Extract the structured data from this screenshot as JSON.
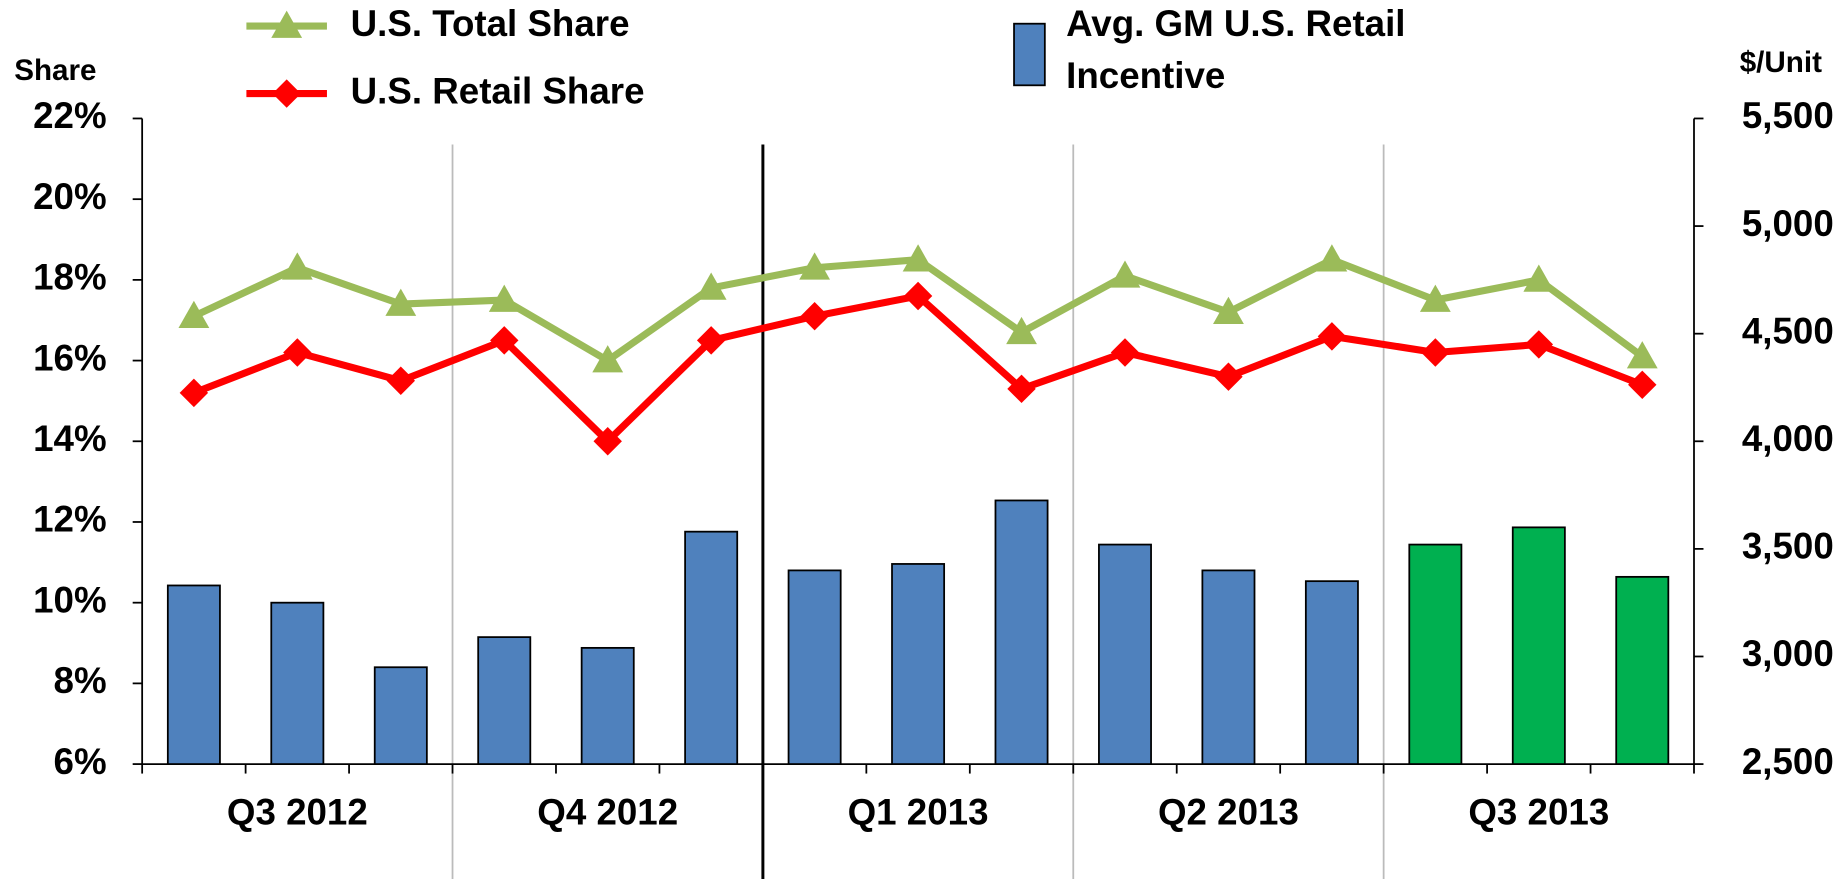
{
  "chart_data": {
    "type": "bar_line",
    "y_axis_label": "Share",
    "y2_axis_label": "$/Unit",
    "categories": [
      null,
      null,
      null,
      null,
      null,
      null,
      null,
      null,
      null,
      null,
      null,
      null,
      null,
      null,
      null
    ],
    "quarters": [
      "Q3 2012",
      "Q4 2012",
      "Q1 2013",
      "Q2 2013",
      "Q3 2013"
    ],
    "ylim": [
      6,
      22
    ],
    "yticks": [
      {
        "value": 6,
        "label": "6%"
      },
      {
        "value": 8,
        "label": "8%"
      },
      {
        "value": 10,
        "label": "10%"
      },
      {
        "value": 12,
        "label": "12%"
      },
      {
        "value": 14,
        "label": "14%"
      },
      {
        "value": 16,
        "label": "16%"
      },
      {
        "value": 18,
        "label": "18%"
      },
      {
        "value": 20,
        "label": "20%"
      },
      {
        "value": 22,
        "label": "22%"
      }
    ],
    "y2lim": [
      2500,
      5500
    ],
    "y2ticks": [
      {
        "value": 2500,
        "label": "2,500"
      },
      {
        "value": 3000,
        "label": "3,000"
      },
      {
        "value": 3500,
        "label": "3,500"
      },
      {
        "value": 4000,
        "label": "4,000"
      },
      {
        "value": 4500,
        "label": "4,500"
      },
      {
        "value": 5000,
        "label": "5,000"
      },
      {
        "value": 5500,
        "label": "5,500"
      }
    ],
    "series": [
      {
        "name": "Avg. GM U.S. Retail Incentive",
        "type": "bar",
        "axis": "y2",
        "color": "#4f81bd",
        "colors": [
          "#4f81bd",
          "#4f81bd",
          "#4f81bd",
          "#4f81bd",
          "#4f81bd",
          "#4f81bd",
          "#4f81bd",
          "#4f81bd",
          "#4f81bd",
          "#4f81bd",
          "#4f81bd",
          "#4f81bd",
          "#00b050",
          "#00b050",
          "#00b050"
        ],
        "values": [
          3330,
          3250,
          2950,
          3090,
          3040,
          3580,
          3400,
          3430,
          3725,
          3520,
          3400,
          3350,
          3520,
          3600,
          3370
        ]
      },
      {
        "name": "U.S. Total Share",
        "type": "line",
        "axis": "y",
        "color": "#9bbb59",
        "marker": "triangle",
        "values": [
          17.1,
          18.3,
          17.4,
          17.5,
          16.0,
          17.8,
          18.3,
          18.5,
          16.7,
          18.1,
          17.2,
          18.5,
          17.5,
          18.0,
          16.1
        ]
      },
      {
        "name": "U.S. Retail Share",
        "type": "line",
        "axis": "y",
        "color": "#ff0000",
        "marker": "diamond",
        "values": [
          15.2,
          16.2,
          15.5,
          16.5,
          14.0,
          16.5,
          17.1,
          17.6,
          15.3,
          16.2,
          15.6,
          16.6,
          16.2,
          16.4,
          15.4
        ]
      }
    ]
  }
}
